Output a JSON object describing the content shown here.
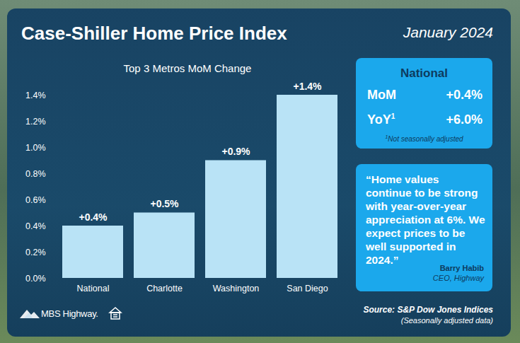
{
  "chart_data": {
    "type": "bar",
    "title": "Case-Shiller Home Price Index",
    "date": "January 2024",
    "subtitle": "Top 3 Metros MoM Change",
    "categories": [
      "National",
      "Charlotte",
      "Washington",
      "San Diego"
    ],
    "values": [
      0.4,
      0.5,
      0.9,
      1.4
    ],
    "value_labels": [
      "+0.4%",
      "+0.5%",
      "+0.9%",
      "+1.4%"
    ],
    "data_labels": true,
    "color": "#b9e3f6",
    "ylim": [
      0,
      1.4
    ],
    "yticks": [
      {
        "value": 0,
        "label": "0.0%"
      },
      {
        "value": 0.2,
        "label": "0.2%"
      },
      {
        "value": 0.4,
        "label": "0.4%"
      },
      {
        "value": 0.6,
        "label": "0.6%"
      },
      {
        "value": 0.8,
        "label": "0.8%"
      },
      {
        "value": 1.0,
        "label": "1.0%"
      },
      {
        "value": 1.2,
        "label": "1.2%"
      },
      {
        "value": 1.4,
        "label": "1.4%"
      }
    ],
    "grid": false
  },
  "panel": {
    "title": "National",
    "rows": [
      {
        "label": "MoM",
        "value": "+0.4%"
      },
      {
        "label": "YoY",
        "note_mark": "1",
        "value": "+6.0%"
      }
    ],
    "note": {
      "mark": "1",
      "text": "Not seasonally adjusted"
    }
  },
  "quote": {
    "text": "“Home values continue to be strong with year-over-year appreciation at 6%. We expect prices to be well supported in 2024.”",
    "author": "Barry Habib",
    "role": "CEO, Highway"
  },
  "footer": {
    "logo": "MBS Highway.",
    "source": "Source: S&P Dow Jones Indices",
    "source_note": "(Seasonally adjusted data)"
  }
}
